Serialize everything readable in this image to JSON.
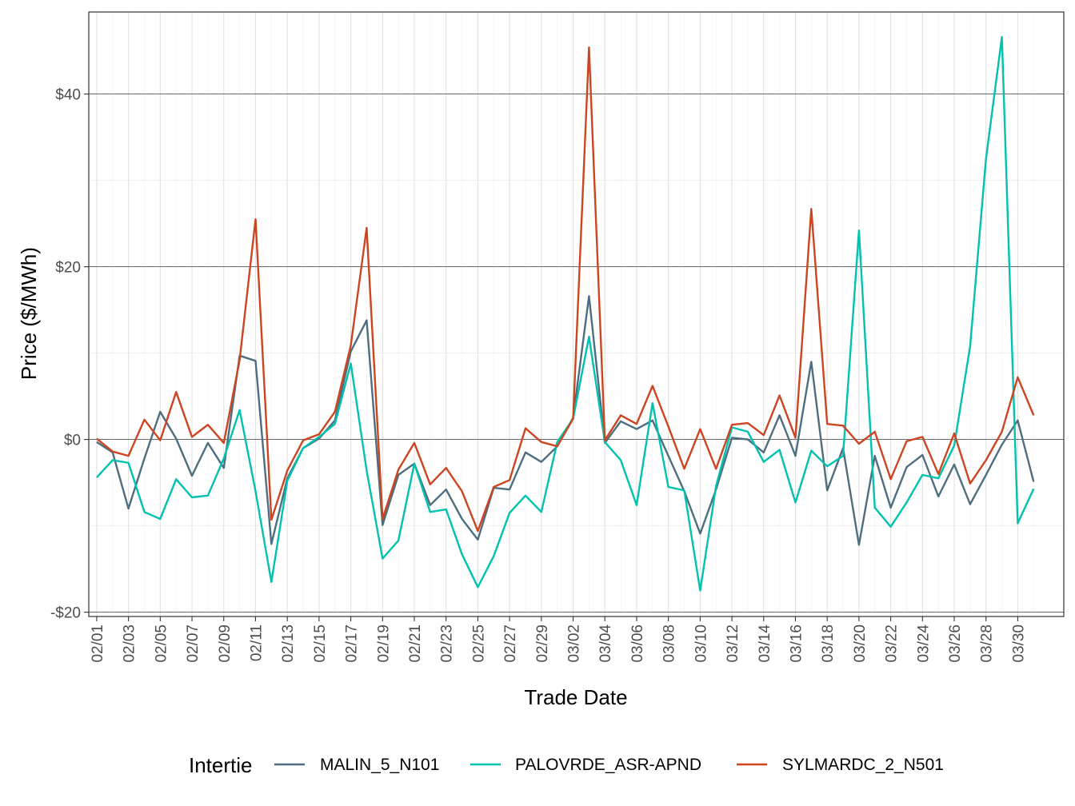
{
  "chart_data": {
    "type": "line",
    "xlabel": "Trade Date",
    "ylabel": "Price ($/MWh)",
    "ylim": [
      -20.5,
      49.5
    ],
    "y_ticks": [
      -20,
      0,
      20,
      40
    ],
    "y_tick_labels": [
      "-$20",
      "$0",
      "$20",
      "$40"
    ],
    "x_tick_labels": [
      "02/01",
      "02/03",
      "02/05",
      "02/07",
      "02/09",
      "02/11",
      "02/13",
      "02/15",
      "02/17",
      "02/19",
      "02/21",
      "02/23",
      "02/25",
      "02/27",
      "02/29",
      "03/02",
      "03/04",
      "03/06",
      "03/08",
      "03/10",
      "03/12",
      "03/14",
      "03/16",
      "03/18",
      "03/20",
      "03/22",
      "03/24",
      "03/26",
      "03/28",
      "03/30"
    ],
    "x": [
      "02/01",
      "02/02",
      "02/03",
      "02/04",
      "02/05",
      "02/06",
      "02/07",
      "02/08",
      "02/09",
      "02/10",
      "02/11",
      "02/12",
      "02/13",
      "02/14",
      "02/15",
      "02/16",
      "02/17",
      "02/18",
      "02/19",
      "02/20",
      "02/21",
      "02/22",
      "02/23",
      "02/24",
      "02/25",
      "02/26",
      "02/27",
      "02/28",
      "02/29",
      "03/01",
      "03/02",
      "03/03",
      "03/04",
      "03/05",
      "03/06",
      "03/07",
      "03/08",
      "03/09",
      "03/10",
      "03/11",
      "03/12",
      "03/13",
      "03/14",
      "03/15",
      "03/16",
      "03/17",
      "03/18",
      "03/19",
      "03/20",
      "03/21",
      "03/22",
      "03/23",
      "03/24",
      "03/25",
      "03/26",
      "03/27",
      "03/28",
      "03/29",
      "03/30",
      "03/31"
    ],
    "grid": true,
    "legend": {
      "title": "Intertie",
      "position": "bottom"
    },
    "series": [
      {
        "name": "MALIN_5_N101",
        "color": "#4E6E80",
        "values": [
          -0.3,
          -1.5,
          -8.0,
          -2.2,
          3.2,
          0.1,
          -4.2,
          -0.4,
          -3.3,
          9.7,
          9.1,
          -12.1,
          -4.5,
          -1.0,
          0.1,
          2.2,
          10.2,
          13.8,
          -9.9,
          -4.1,
          -2.8,
          -7.6,
          -5.8,
          -9.2,
          -11.6,
          -5.6,
          -5.8,
          -1.5,
          -2.6,
          -0.8,
          2.5,
          16.6,
          -0.4,
          2.1,
          1.2,
          2.2,
          -1.9,
          -6.0,
          -10.9,
          -5.8,
          0.2,
          0.0,
          -1.5,
          2.8,
          -1.9,
          9.0,
          -5.9,
          -1.0,
          -12.2,
          -1.9,
          -7.9,
          -3.2,
          -1.8,
          -6.6,
          -2.9,
          -7.5,
          -4.1,
          -0.6,
          2.2,
          -4.9
        ]
      },
      {
        "name": "PALOVRDE_ASR-APND",
        "color": "#00C2AE",
        "values": [
          -4.4,
          -2.4,
          -2.7,
          -8.4,
          -9.2,
          -4.6,
          -6.7,
          -6.5,
          -2.2,
          3.4,
          -6.0,
          -16.5,
          -4.8,
          -1.0,
          0.3,
          1.8,
          8.8,
          -3.6,
          -13.8,
          -11.7,
          -2.8,
          -8.4,
          -8.1,
          -13.3,
          -17.1,
          -13.5,
          -8.5,
          -6.5,
          -8.4,
          -0.3,
          2.4,
          11.9,
          -0.3,
          -2.4,
          -7.6,
          4.2,
          -5.5,
          -5.9,
          -17.5,
          -5.4,
          1.4,
          0.9,
          -2.6,
          -1.2,
          -7.3,
          -1.3,
          -3.1,
          -1.9,
          24.2,
          -7.9,
          -10.1,
          -7.3,
          -4.1,
          -4.5,
          -0.7,
          10.8,
          32.5,
          46.6,
          -9.7,
          -5.7
        ]
      },
      {
        "name": "SYLMARDC_2_N501",
        "color": "#CC4420",
        "values": [
          0.1,
          -1.4,
          -1.9,
          2.3,
          -0.1,
          5.5,
          0.3,
          1.7,
          -0.4,
          9.2,
          25.5,
          -9.3,
          -3.6,
          -0.1,
          0.6,
          3.2,
          10.9,
          24.5,
          -9.2,
          -3.5,
          -0.4,
          -5.2,
          -3.3,
          -6.0,
          -10.6,
          -5.5,
          -4.7,
          1.3,
          -0.3,
          -0.8,
          2.4,
          45.4,
          -0.1,
          2.8,
          1.8,
          6.2,
          1.5,
          -3.4,
          1.2,
          -3.4,
          1.7,
          1.9,
          0.5,
          5.1,
          0.2,
          26.7,
          1.8,
          1.6,
          -0.5,
          0.9,
          -4.6,
          -0.2,
          0.3,
          -4.0,
          0.7,
          -5.1,
          -2.4,
          0.9,
          7.2,
          2.8
        ]
      }
    ]
  }
}
